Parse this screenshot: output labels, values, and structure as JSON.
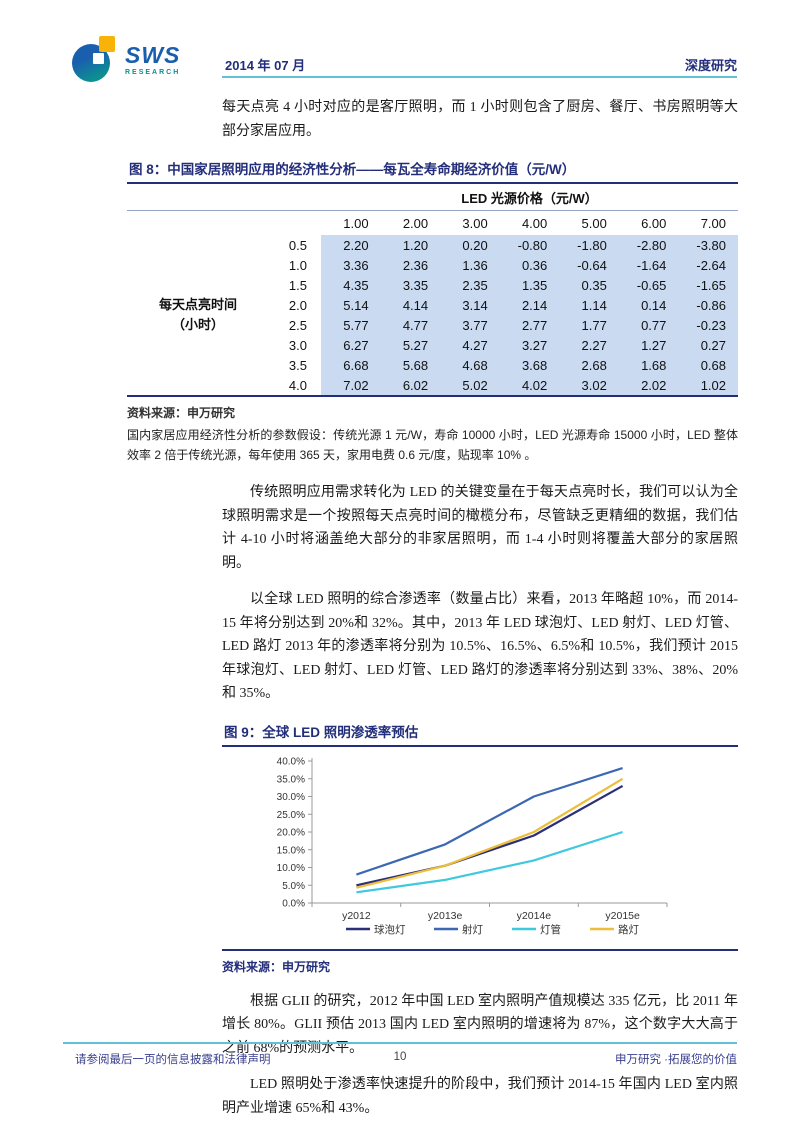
{
  "header": {
    "logo_brand": "SWS",
    "logo_sub": "RESEARCH",
    "date": "2014 年 07 月",
    "doc_type": "深度研究"
  },
  "paragraphs": {
    "p1": "每天点亮 4 小时对应的是客厅照明，而 1 小时则包含了厨房、餐厅、书房照明等大部分家居应用。",
    "p2": "传统照明应用需求转化为 LED 的关键变量在于每天点亮时长，我们可以认为全球照明需求是一个按照每天点亮时间的橄榄分布，尽管缺乏更精细的数据，我们估计 4-10 小时将涵盖绝大部分的非家居照明，而 1-4 小时则将覆盖大部分的家居照明。",
    "p3": "以全球 LED 照明的综合渗透率（数量占比）来看，2013 年略超 10%，而 2014-15 年将分别达到 20%和 32%。其中，2013 年 LED 球泡灯、LED 射灯、LED 灯管、LED 路灯 2013 年的渗透率将分别为 10.5%、16.5%、6.5%和 10.5%，我们预计 2015 年球泡灯、LED 射灯、LED 灯管、LED 路灯的渗透率将分别达到 33%、38%、20%和 35%。",
    "p4": "根据 GLII 的研究，2012 年中国 LED 室内照明产值规模达 335 亿元，比 2011 年增长 80%。GLII 预估 2013 国内 LED 室内照明的增速将为 87%，这个数字大大高于之前 68%的预测水平。",
    "p5": "LED 照明处于渗透率快速提升的阶段中，我们预计 2014-15 年国内 LED 室内照明产业增速 65%和 43%。"
  },
  "figure8": {
    "title": "图 8：中国家居照明应用的经济性分析——每瓦全寿命期经济价值（元/W）",
    "table": {
      "col_group": "LED 光源价格（元/W）",
      "row_group_line1": "每天点亮时间",
      "row_group_line2": "（小时）",
      "columns": [
        "1.00",
        "2.00",
        "3.00",
        "4.00",
        "5.00",
        "6.00",
        "7.00"
      ],
      "rows": [
        {
          "hours": "0.5",
          "values": [
            "2.20",
            "1.20",
            "0.20",
            "-0.80",
            "-1.80",
            "-2.80",
            "-3.80"
          ]
        },
        {
          "hours": "1.0",
          "values": [
            "3.36",
            "2.36",
            "1.36",
            "0.36",
            "-0.64",
            "-1.64",
            "-2.64"
          ]
        },
        {
          "hours": "1.5",
          "values": [
            "4.35",
            "3.35",
            "2.35",
            "1.35",
            "0.35",
            "-0.65",
            "-1.65"
          ]
        },
        {
          "hours": "2.0",
          "values": [
            "5.14",
            "4.14",
            "3.14",
            "2.14",
            "1.14",
            "0.14",
            "-0.86"
          ]
        },
        {
          "hours": "2.5",
          "values": [
            "5.77",
            "4.77",
            "3.77",
            "2.77",
            "1.77",
            "0.77",
            "-0.23"
          ]
        },
        {
          "hours": "3.0",
          "values": [
            "6.27",
            "5.27",
            "4.27",
            "3.27",
            "2.27",
            "1.27",
            "0.27"
          ]
        },
        {
          "hours": "3.5",
          "values": [
            "6.68",
            "5.68",
            "4.68",
            "3.68",
            "2.68",
            "1.68",
            "0.68"
          ]
        },
        {
          "hours": "4.0",
          "values": [
            "7.02",
            "6.02",
            "5.02",
            "4.02",
            "3.02",
            "2.02",
            "1.02"
          ]
        }
      ]
    },
    "source": "资料来源：申万研究",
    "note": "国内家居应用经济性分析的参数假设：传统光源 1 元/W，寿命 10000 小时，LED 光源寿命 15000 小时，LED 整体效率 2 倍于传统光源，每年使用 365 天，家用电费 0.6 元/度，贴现率 10% 。"
  },
  "figure9": {
    "title": "图 9：全球 LED 照明渗透率预估",
    "source": "资料来源：申万研究"
  },
  "chart_data": {
    "type": "line",
    "title": "全球 LED 照明渗透率预估",
    "categories": [
      "y2012",
      "y2013e",
      "y2014e",
      "y2015e"
    ],
    "series": [
      {
        "name": "球泡灯",
        "color": "#2b2f78",
        "values": [
          5.0,
          10.5,
          19.0,
          33.0
        ]
      },
      {
        "name": "射灯",
        "color": "#3c68b2",
        "values": [
          8.0,
          16.5,
          30.0,
          38.0
        ]
      },
      {
        "name": "灯管",
        "color": "#3fc8de",
        "values": [
          3.0,
          6.5,
          12.0,
          20.0
        ]
      },
      {
        "name": "路灯",
        "color": "#edbe3a",
        "values": [
          4.3,
          10.5,
          20.0,
          35.0
        ]
      }
    ],
    "ylim": [
      0,
      40
    ],
    "ytick_step": 5,
    "ytick_format": "percent_one_decimal",
    "grid": false,
    "legend_position": "bottom",
    "axis_color": "#999999",
    "label_color": "#333333"
  },
  "footer": {
    "left": "请参阅最后一页的信息披露和法律声明",
    "page": "10",
    "right": "申万研究 ·拓展您的价值"
  }
}
